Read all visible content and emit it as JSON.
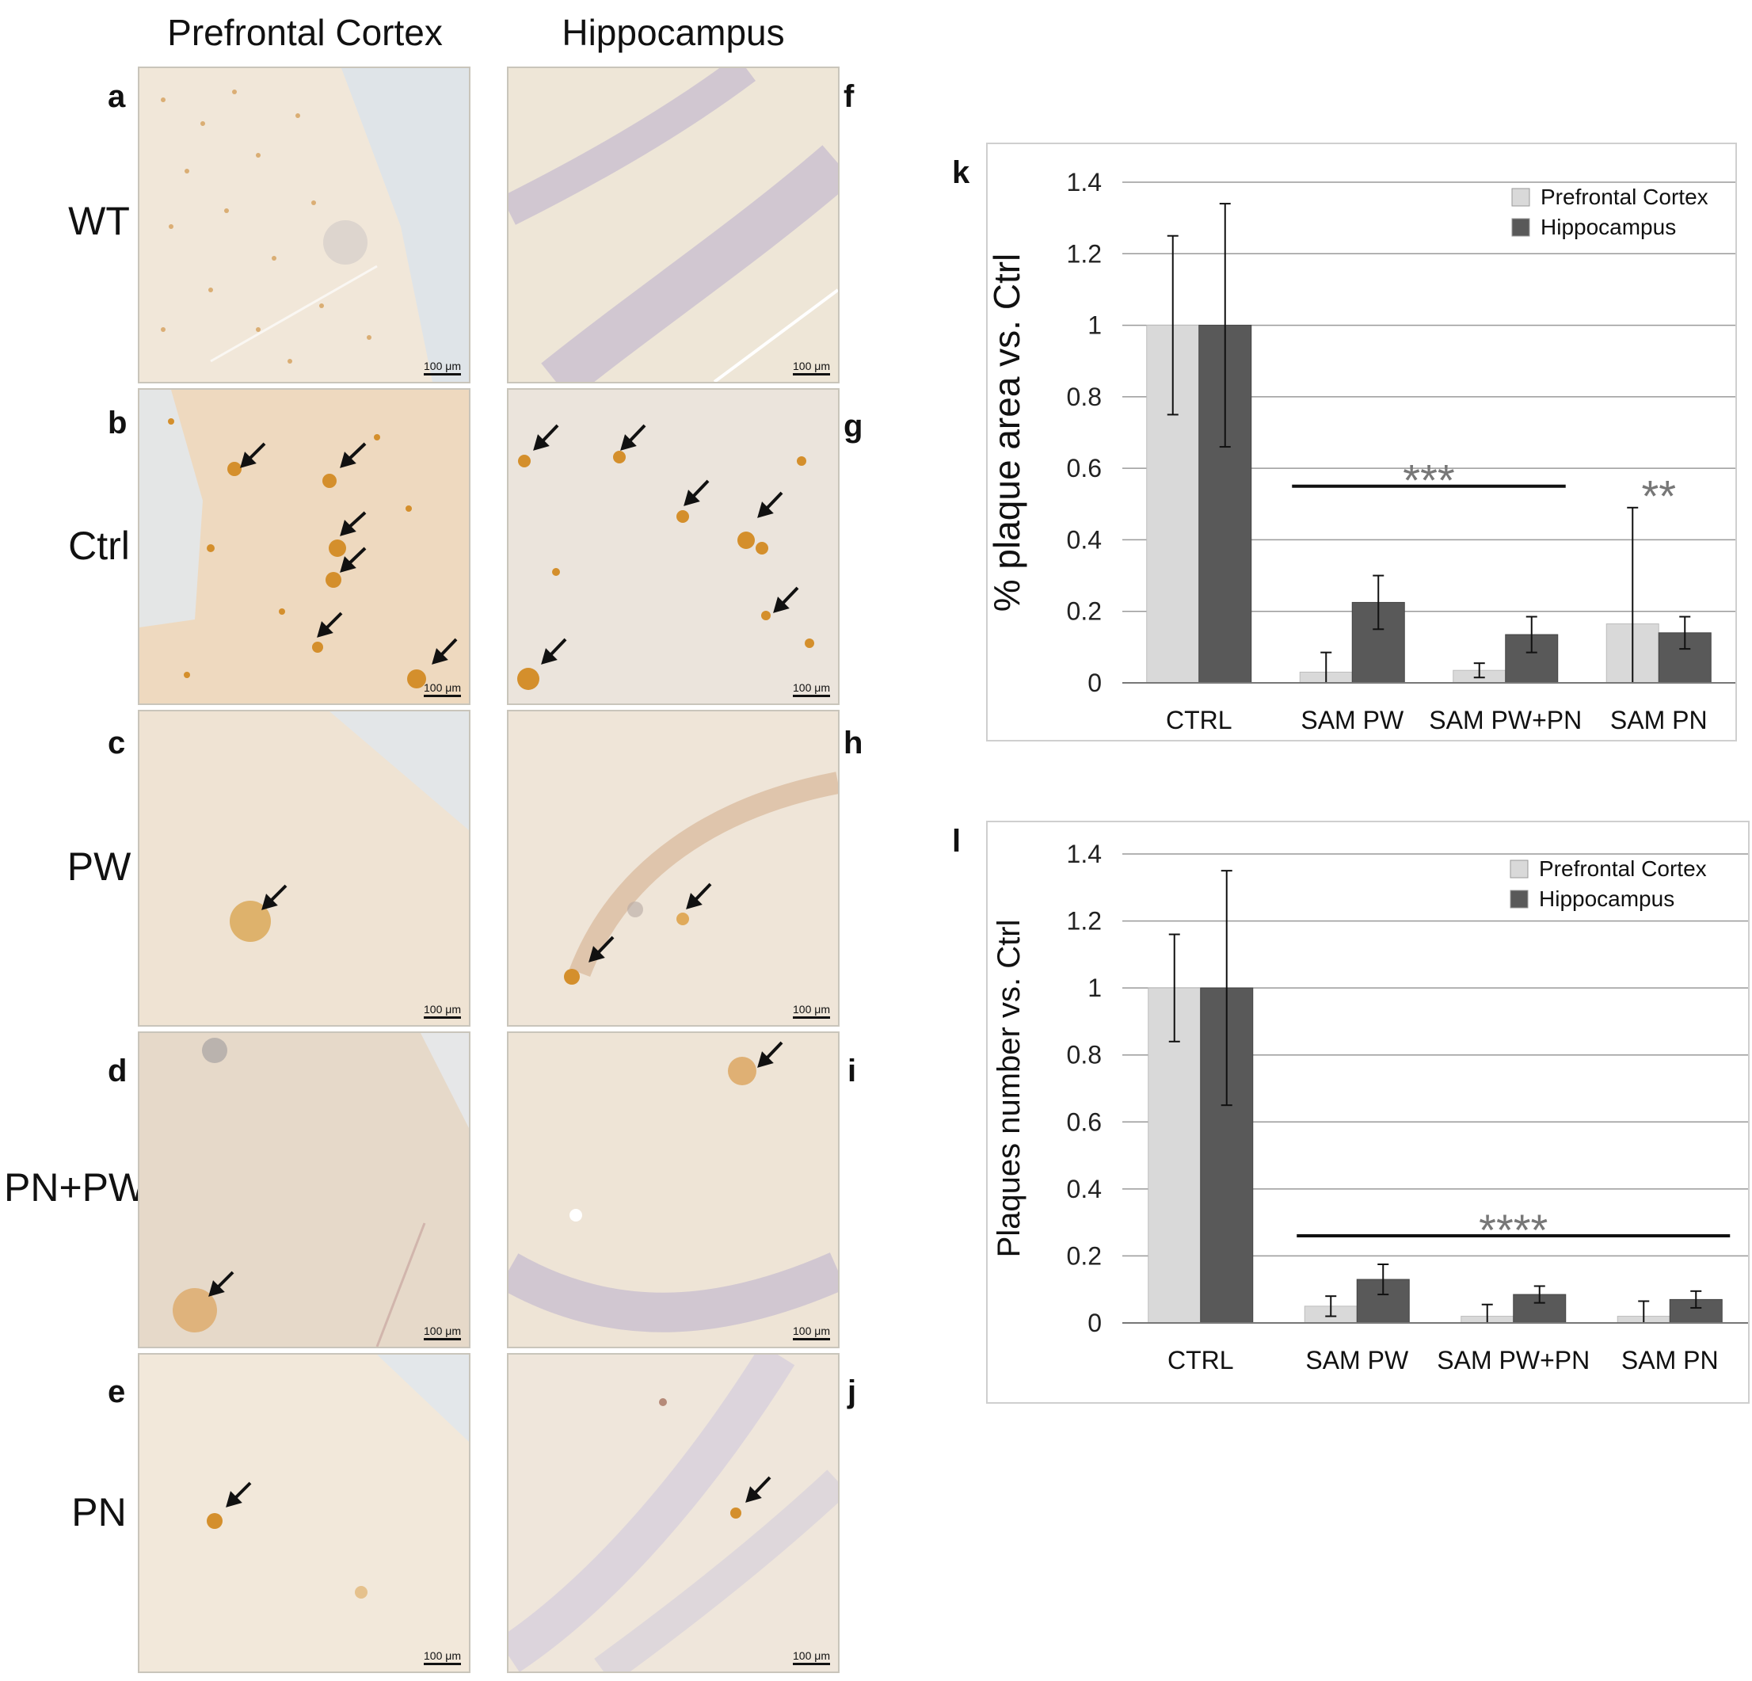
{
  "columns": [
    "Prefrontal Cortex",
    "Hippocampus"
  ],
  "rows": [
    {
      "label": "WT",
      "left_letter": "a",
      "right_letter": "f"
    },
    {
      "label": "Ctrl",
      "left_letter": "b",
      "right_letter": "g"
    },
    {
      "label": "PW",
      "left_letter": "c",
      "right_letter": "h"
    },
    {
      "label": "PN+PW",
      "left_letter": "d",
      "right_letter": "i"
    },
    {
      "label": "PN",
      "left_letter": "e",
      "right_letter": "j"
    }
  ],
  "scale_label": "100 μm",
  "chart_data": [
    {
      "type": "bar",
      "panel_letter": "k",
      "categories": [
        "CTRL",
        "SAM PW",
        "SAM PW+PN",
        "SAM PN"
      ],
      "ylabel": "% plaque area vs. Ctrl",
      "xlabel": "",
      "ylim": [
        0,
        1.4
      ],
      "yticks": [
        "0",
        "0.2",
        "0.4",
        "0.6",
        "0.8",
        "1",
        "1.2",
        "1.4"
      ],
      "grid": true,
      "legend_position": "top-right",
      "series": [
        {
          "name": "Prefrontal Cortex",
          "color": "#d9d9d9",
          "values": [
            1.0,
            0.03,
            0.035,
            0.165
          ],
          "errors": [
            0.25,
            0.055,
            0.02,
            0.325
          ]
        },
        {
          "name": "Hippocampus",
          "color": "#595959",
          "values": [
            1.0,
            0.225,
            0.135,
            0.14
          ],
          "errors": [
            0.34,
            0.075,
            0.05,
            0.045
          ]
        }
      ],
      "annotations": [
        {
          "text": "***",
          "from_category": 1,
          "to_category": 2,
          "y": 0.55
        },
        {
          "text": "**",
          "from_category": 3,
          "to_category": 3,
          "y": 0.55
        }
      ]
    },
    {
      "type": "bar",
      "panel_letter": "l",
      "categories": [
        "CTRL",
        "SAM PW",
        "SAM PW+PN",
        "SAM PN"
      ],
      "ylabel": "Plaques number vs. Ctrl",
      "xlabel": "",
      "ylim": [
        0,
        1.4
      ],
      "yticks": [
        "0",
        "0.2",
        "0.4",
        "0.6",
        "0.8",
        "1",
        "1.2",
        "1.4"
      ],
      "grid": true,
      "legend_position": "top-right",
      "series": [
        {
          "name": "Prefrontal Cortex",
          "color": "#d9d9d9",
          "values": [
            1.0,
            0.05,
            0.02,
            0.02
          ],
          "errors": [
            0.16,
            0.03,
            0.035,
            0.045
          ]
        },
        {
          "name": "Hippocampus",
          "color": "#595959",
          "values": [
            1.0,
            0.13,
            0.085,
            0.07
          ],
          "errors": [
            0.35,
            0.045,
            0.025,
            0.025
          ]
        }
      ],
      "annotations": [
        {
          "text": "****",
          "from_category": 1,
          "to_category": 3,
          "y": 0.26
        }
      ]
    }
  ]
}
